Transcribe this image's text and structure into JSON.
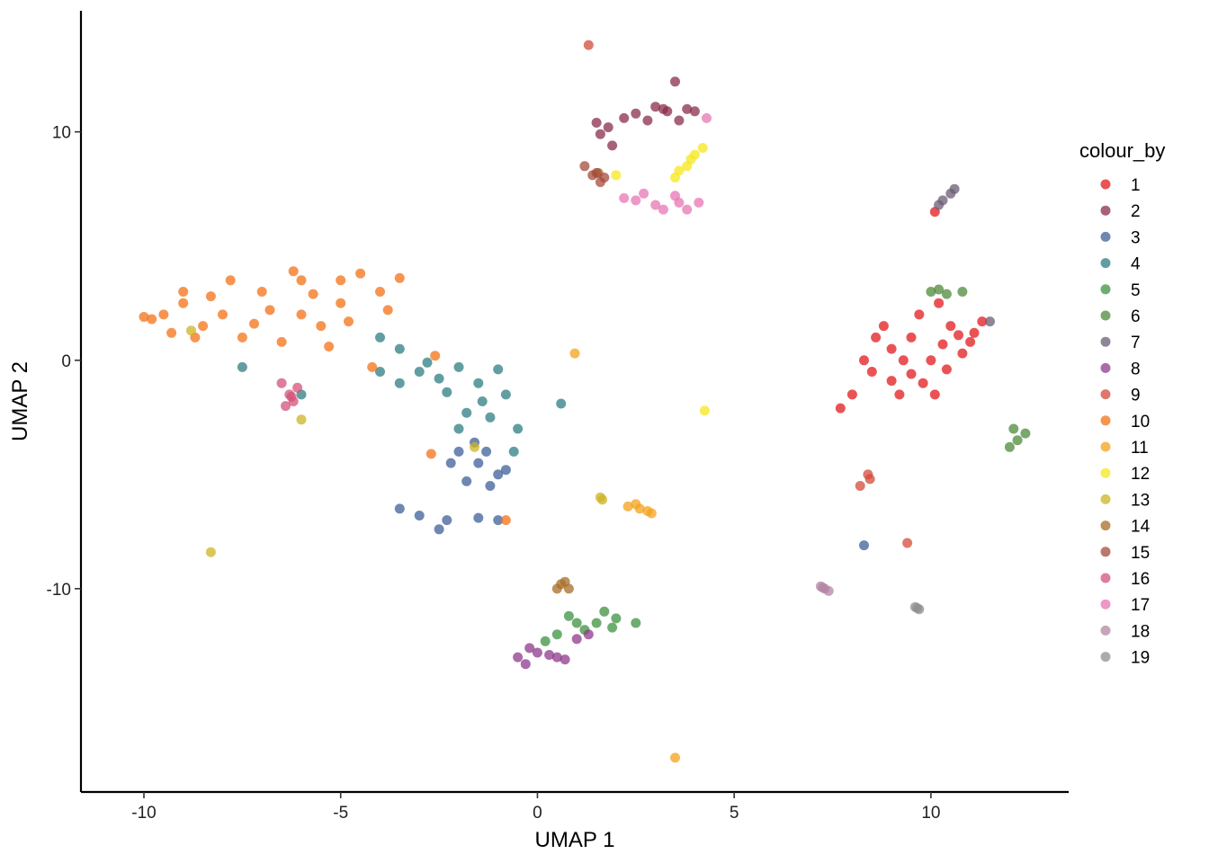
{
  "chart_data": {
    "type": "scatter",
    "xlabel": "UMAP 1",
    "ylabel": "UMAP 2",
    "xlim": [
      -11.6,
      13.5
    ],
    "ylim": [
      -18.9,
      15.3
    ],
    "x_ticks": [
      -10,
      -5,
      0,
      5,
      10
    ],
    "x_tick_labels": [
      "-10",
      "-5",
      "0",
      "5",
      "10"
    ],
    "y_ticks": [
      10,
      0,
      -10
    ],
    "y_tick_labels": [
      "10",
      "0",
      "-10"
    ],
    "grid": false,
    "legend_title": "colour_by",
    "legend_position": "right",
    "series": [
      {
        "label": "1",
        "color": "#E31A1C",
        "points": [
          [
            9.0,
            0.5
          ],
          [
            8.5,
            -0.5
          ],
          [
            9.5,
            1.0
          ],
          [
            10.0,
            0.0
          ],
          [
            10.5,
            1.5
          ],
          [
            11.0,
            0.8
          ],
          [
            8.0,
            -1.5
          ],
          [
            7.7,
            -2.1
          ],
          [
            9.2,
            -1.5
          ],
          [
            10.2,
            2.5
          ],
          [
            11.3,
            1.7
          ],
          [
            9.8,
            -1.0
          ],
          [
            8.8,
            1.5
          ],
          [
            10.8,
            0.3
          ],
          [
            9.3,
            0.0
          ],
          [
            10.1,
            -1.5
          ],
          [
            8.3,
            0.0
          ],
          [
            9.7,
            2.0
          ],
          [
            10.4,
            -0.4
          ],
          [
            9.0,
            -0.9
          ],
          [
            8.6,
            1.0
          ],
          [
            10.7,
            1.1
          ],
          [
            9.5,
            -0.6
          ],
          [
            10.3,
            0.7
          ],
          [
            11.1,
            1.2
          ],
          [
            10.1,
            6.5
          ]
        ]
      },
      {
        "label": "2",
        "color": "#8B2E4A",
        "points": [
          [
            1.5,
            10.4
          ],
          [
            2.5,
            10.8
          ],
          [
            3.2,
            11.0
          ],
          [
            3.6,
            10.5
          ],
          [
            4.0,
            10.9
          ],
          [
            3.5,
            12.2
          ],
          [
            1.8,
            10.2
          ],
          [
            2.8,
            10.5
          ],
          [
            3.3,
            10.9
          ],
          [
            3.8,
            11.0
          ],
          [
            1.6,
            9.9
          ],
          [
            1.9,
            9.4
          ],
          [
            2.2,
            10.6
          ],
          [
            3.0,
            11.1
          ]
        ]
      },
      {
        "label": "3",
        "color": "#3E5F9A",
        "points": [
          [
            -1.5,
            -4.5
          ],
          [
            -1.2,
            -5.5
          ],
          [
            -2.0,
            -4.0
          ],
          [
            -1.0,
            -5.0
          ],
          [
            -1.8,
            -5.3
          ],
          [
            -2.3,
            -7.0
          ],
          [
            -1.5,
            -6.9
          ],
          [
            -3.0,
            -6.8
          ],
          [
            -3.5,
            -6.5
          ],
          [
            -1.0,
            -7.0
          ],
          [
            -1.3,
            -4.0
          ],
          [
            -0.8,
            -4.8
          ],
          [
            -1.6,
            -3.6
          ],
          [
            -2.5,
            -7.4
          ],
          [
            -2.2,
            -4.5
          ],
          [
            8.3,
            -8.1
          ]
        ]
      },
      {
        "label": "4",
        "color": "#2E7E82",
        "points": [
          [
            -3.0,
            -0.5
          ],
          [
            -2.5,
            -0.8
          ],
          [
            -2.0,
            -0.3
          ],
          [
            -1.5,
            -1.0
          ],
          [
            -1.0,
            -0.4
          ],
          [
            -0.8,
            -1.5
          ],
          [
            -1.2,
            -2.5
          ],
          [
            -0.5,
            -3.0
          ],
          [
            -2.0,
            -3.0
          ],
          [
            -1.8,
            -2.3
          ],
          [
            -3.5,
            -1.0
          ],
          [
            -4.0,
            -0.5
          ],
          [
            -3.5,
            0.5
          ],
          [
            -4.0,
            1.0
          ],
          [
            -6.0,
            -1.5
          ],
          [
            -7.5,
            -0.3
          ],
          [
            -0.6,
            -4.0
          ],
          [
            0.6,
            -1.9
          ],
          [
            -2.3,
            -1.4
          ],
          [
            -1.4,
            -1.8
          ],
          [
            -2.8,
            -0.1
          ]
        ]
      },
      {
        "label": "5",
        "color": "#3E9140",
        "points": [
          [
            0.5,
            -12.0
          ],
          [
            1.0,
            -11.5
          ],
          [
            1.5,
            -11.5
          ],
          [
            1.7,
            -11.0
          ],
          [
            2.0,
            -11.3
          ],
          [
            2.5,
            -11.5
          ],
          [
            0.2,
            -12.3
          ],
          [
            1.2,
            -11.8
          ],
          [
            0.8,
            -11.2
          ],
          [
            1.9,
            -11.7
          ]
        ]
      },
      {
        "label": "6",
        "color": "#4E8A3A",
        "points": [
          [
            10.0,
            3.0
          ],
          [
            10.4,
            2.9
          ],
          [
            10.8,
            3.0
          ],
          [
            12.1,
            -3.0
          ],
          [
            12.2,
            -3.5
          ],
          [
            12.4,
            -3.2
          ],
          [
            12.0,
            -3.8
          ],
          [
            10.2,
            3.1
          ]
        ]
      },
      {
        "label": "7",
        "color": "#6B5C73",
        "points": [
          [
            10.5,
            7.3
          ],
          [
            10.2,
            6.8
          ],
          [
            10.6,
            7.5
          ],
          [
            10.3,
            7.0
          ],
          [
            11.5,
            1.7
          ]
        ]
      },
      {
        "label": "8",
        "color": "#8E3A8B",
        "points": [
          [
            -0.5,
            -13.0
          ],
          [
            -0.3,
            -13.3
          ],
          [
            0.0,
            -12.8
          ],
          [
            0.5,
            -13.0
          ],
          [
            1.0,
            -12.2
          ],
          [
            1.3,
            -12.0
          ],
          [
            -0.2,
            -12.6
          ],
          [
            0.7,
            -13.1
          ],
          [
            0.3,
            -12.9
          ]
        ]
      },
      {
        "label": "9",
        "color": "#D24B38",
        "points": [
          [
            1.3,
            13.8
          ],
          [
            8.4,
            -5.0
          ],
          [
            8.2,
            -5.5
          ],
          [
            8.45,
            -5.2
          ],
          [
            9.4,
            -8.0
          ]
        ]
      },
      {
        "label": "10",
        "color": "#F47216",
        "points": [
          [
            -9.0,
            2.5
          ],
          [
            -9.5,
            2.0
          ],
          [
            -8.5,
            1.5
          ],
          [
            -9.0,
            3.0
          ],
          [
            -8.0,
            2.0
          ],
          [
            -7.0,
            3.0
          ],
          [
            -6.0,
            3.5
          ],
          [
            -5.0,
            3.5
          ],
          [
            -4.0,
            3.0
          ],
          [
            -7.5,
            1.0
          ],
          [
            -6.5,
            0.8
          ],
          [
            -5.5,
            1.5
          ],
          [
            -5.0,
            2.5
          ],
          [
            -6.0,
            2.0
          ],
          [
            -4.5,
            3.8
          ],
          [
            -3.5,
            3.6
          ],
          [
            -8.7,
            1.0
          ],
          [
            -9.8,
            1.8
          ],
          [
            -6.8,
            2.2
          ],
          [
            -7.8,
            3.5
          ],
          [
            -5.3,
            0.6
          ],
          [
            -4.8,
            1.7
          ],
          [
            -3.8,
            2.2
          ],
          [
            -2.6,
            0.2
          ],
          [
            -4.2,
            -0.3
          ],
          [
            -0.8,
            -7.0
          ],
          [
            -2.7,
            -4.1
          ],
          [
            -8.3,
            2.8
          ],
          [
            -9.3,
            1.2
          ],
          [
            -10.0,
            1.9
          ],
          [
            -7.2,
            1.6
          ],
          [
            -6.2,
            3.9
          ],
          [
            -5.7,
            2.9
          ]
        ]
      },
      {
        "label": "11",
        "color": "#F4A21A",
        "points": [
          [
            2.5,
            -6.3
          ],
          [
            2.8,
            -6.6
          ],
          [
            2.3,
            -6.4
          ],
          [
            3.5,
            -17.4
          ],
          [
            0.95,
            0.3
          ],
          [
            2.6,
            -6.5
          ],
          [
            2.9,
            -6.7
          ]
        ]
      },
      {
        "label": "12",
        "color": "#F6E71C",
        "points": [
          [
            3.5,
            8.0
          ],
          [
            4.0,
            9.0
          ],
          [
            3.8,
            8.5
          ],
          [
            4.2,
            9.3
          ],
          [
            2.0,
            8.1
          ],
          [
            4.25,
            -2.2
          ],
          [
            3.6,
            8.3
          ],
          [
            3.9,
            8.8
          ]
        ]
      },
      {
        "label": "13",
        "color": "#CDB324",
        "points": [
          [
            -8.3,
            -8.4
          ],
          [
            1.6,
            -6.0
          ],
          [
            -1.6,
            -3.8
          ],
          [
            -8.8,
            1.3
          ],
          [
            -6.0,
            -2.6
          ],
          [
            1.65,
            -6.1
          ]
        ]
      },
      {
        "label": "14",
        "color": "#A86E28",
        "points": [
          [
            0.5,
            -10.0
          ],
          [
            0.7,
            -9.7
          ],
          [
            0.8,
            -10.0
          ],
          [
            1.55,
            8.2
          ],
          [
            0.6,
            -9.8
          ]
        ]
      },
      {
        "label": "15",
        "color": "#A64B3A",
        "points": [
          [
            1.5,
            8.2
          ],
          [
            1.2,
            8.5
          ],
          [
            1.6,
            7.8
          ],
          [
            1.7,
            8.0
          ],
          [
            1.4,
            8.1
          ]
        ]
      },
      {
        "label": "16",
        "color": "#D4527A",
        "points": [
          [
            -6.5,
            -1.0
          ],
          [
            -6.3,
            -1.5
          ],
          [
            -6.2,
            -1.8
          ],
          [
            -6.4,
            -2.0
          ],
          [
            -6.1,
            -1.2
          ],
          [
            -6.25,
            -1.6
          ]
        ]
      },
      {
        "label": "17",
        "color": "#E876B5",
        "points": [
          [
            2.5,
            7.0
          ],
          [
            3.0,
            6.8
          ],
          [
            3.5,
            7.2
          ],
          [
            3.8,
            6.6
          ],
          [
            4.1,
            6.9
          ],
          [
            2.7,
            7.3
          ],
          [
            3.2,
            6.6
          ],
          [
            3.6,
            6.9
          ],
          [
            2.2,
            7.1
          ],
          [
            4.3,
            10.6
          ]
        ]
      },
      {
        "label": "18",
        "color": "#B386A3",
        "points": [
          [
            7.2,
            -9.9
          ],
          [
            7.3,
            -10.0
          ],
          [
            7.4,
            -10.1
          ],
          [
            7.25,
            -9.95
          ]
        ]
      },
      {
        "label": "19",
        "color": "#8F8F8F",
        "points": [
          [
            9.6,
            -10.8
          ],
          [
            9.7,
            -10.9
          ],
          [
            9.65,
            -10.85
          ]
        ]
      }
    ]
  }
}
